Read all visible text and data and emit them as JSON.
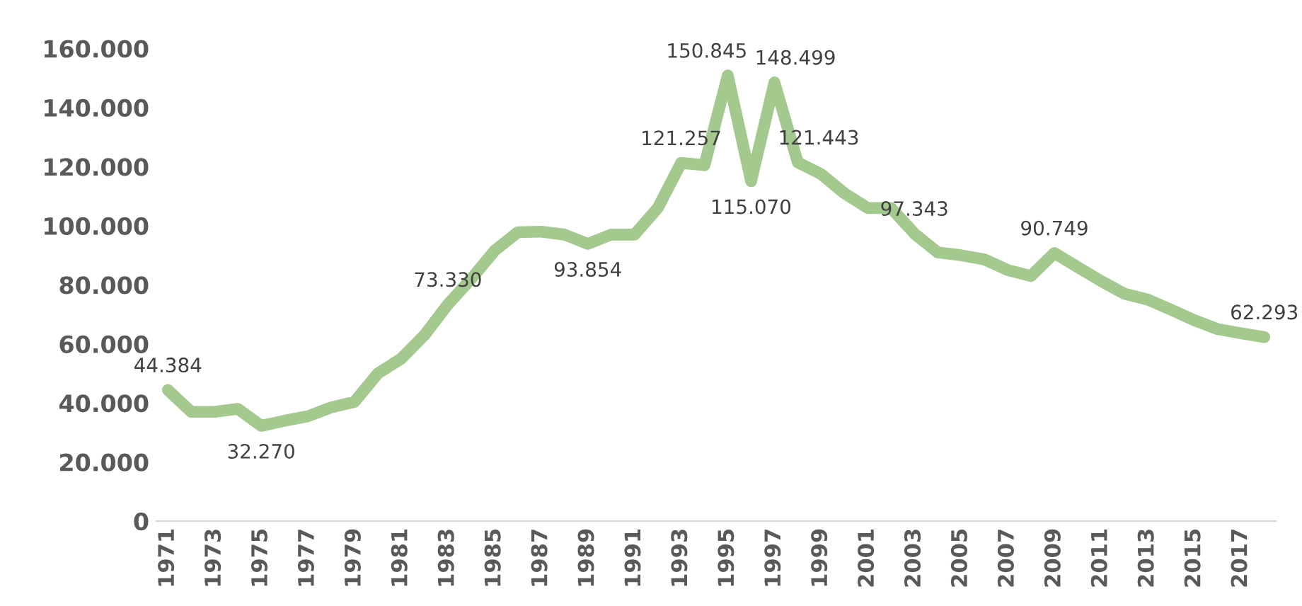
{
  "chart_data": {
    "type": "line",
    "categories": [
      "1971",
      null,
      "1973",
      null,
      "1975",
      null,
      "1977",
      null,
      "1979",
      null,
      "1981",
      null,
      "1983",
      null,
      "1985",
      null,
      "1987",
      null,
      "1989",
      null,
      "1991",
      null,
      "1993",
      null,
      "1995",
      null,
      "1997",
      null,
      "1999",
      null,
      "2001",
      null,
      "2003",
      null,
      "2005",
      null,
      "2007",
      null,
      "2009",
      null,
      "2011",
      null,
      "2013",
      null,
      "2015",
      null,
      "2017",
      null
    ],
    "series": [
      {
        "color": "#a3c98e",
        "values": [
          44384,
          37000,
          37000,
          38000,
          32270,
          34000,
          35500,
          38500,
          40400,
          50000,
          55000,
          63000,
          73330,
          82000,
          91500,
          97800,
          98000,
          97000,
          93854,
          97000,
          97000,
          106000,
          121257,
          120500,
          150845,
          115070,
          148499,
          121443,
          117500,
          111000,
          106000,
          106000,
          97343,
          91000,
          90000,
          88600,
          85000,
          83000,
          90749,
          86000,
          81300,
          77000,
          75000,
          71600,
          68000,
          65000,
          63600,
          62293
        ],
        "value_labels": [
          "44.384",
          null,
          null,
          null,
          "32.270",
          null,
          null,
          null,
          null,
          null,
          null,
          null,
          "73.330",
          null,
          null,
          null,
          null,
          null,
          "93.854",
          null,
          null,
          null,
          "121.257",
          null,
          "150.845",
          "115.070",
          "148.499",
          "121.443",
          null,
          null,
          null,
          null,
          "97.343",
          null,
          null,
          null,
          null,
          null,
          "90.749",
          null,
          null,
          null,
          null,
          null,
          null,
          null,
          null,
          "62.293"
        ]
      }
    ],
    "ylim": [
      0,
      160000
    ],
    "yticks": [
      {
        "value": 0,
        "label": "0"
      },
      {
        "value": 20000,
        "label": "20.000"
      },
      {
        "value": 40000,
        "label": "40.000"
      },
      {
        "value": 60000,
        "label": "60.000"
      },
      {
        "value": 80000,
        "label": "80.000"
      },
      {
        "value": 100000,
        "label": "100.000"
      },
      {
        "value": 120000,
        "label": "120.000"
      },
      {
        "value": 140000,
        "label": "140.000"
      },
      {
        "value": 160000,
        "label": "160.000"
      }
    ],
    "grid": false,
    "marker": "none",
    "line_style": "solid"
  }
}
